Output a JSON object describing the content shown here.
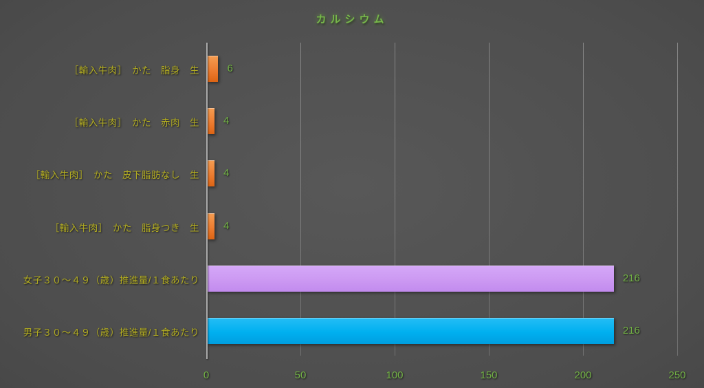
{
  "title": "カルシウム",
  "colors": {
    "title_green": "#77b84a",
    "category_label_yellow": "#b2ac22",
    "value_green": "#72b145",
    "tick_green": "#72b145",
    "axis_line_gray": "#ababab",
    "background_center": "#585858",
    "background_edge": "#383838"
  },
  "chart_data": {
    "type": "bar",
    "orientation": "horizontal",
    "title": "カルシウム",
    "categories": [
      "［輸入牛肉］　かた　脂身　生",
      "［輸入牛肉］　かた　赤肉　生",
      "［輸入牛肉］　かた　皮下脂肪なし　生",
      "［輸入牛肉］　かた　脂身つき　生",
      "女子３０～４９（歳）推進量/１食あたり",
      "男子３０～４９（歳）推進量/１食あたり"
    ],
    "values": [
      6,
      4,
      4,
      4,
      216,
      216
    ],
    "value_labels": [
      "6",
      "4",
      "4",
      "4",
      "216",
      "216"
    ],
    "bar_colors": [
      {
        "name": "orange",
        "base": "#ed7d31",
        "light": "#f59d52",
        "dark": "#dd6414"
      },
      {
        "name": "orange",
        "base": "#ed7d31",
        "light": "#f59d52",
        "dark": "#dd6414"
      },
      {
        "name": "orange",
        "base": "#ed7d31",
        "light": "#f59d52",
        "dark": "#dd6414"
      },
      {
        "name": "orange",
        "base": "#ed7d31",
        "light": "#f59d52",
        "dark": "#dd6414"
      },
      {
        "name": "purple",
        "base": "#cc99f2",
        "light": "#d5a8f8",
        "dark": "#c28bee"
      },
      {
        "name": "cyan",
        "base": "#00b0f0",
        "light": "#25bdf5",
        "dark": "#009fe0"
      }
    ],
    "xlabel": "",
    "ylabel": "",
    "xlim": [
      0,
      250
    ],
    "xticks": [
      0,
      50,
      100,
      150,
      200,
      250
    ],
    "xtick_labels": [
      "0",
      "50",
      "100",
      "150",
      "200",
      "250"
    ],
    "grid": "vertical-gridlines-on",
    "legend": "none",
    "value_labels_shown": true
  }
}
